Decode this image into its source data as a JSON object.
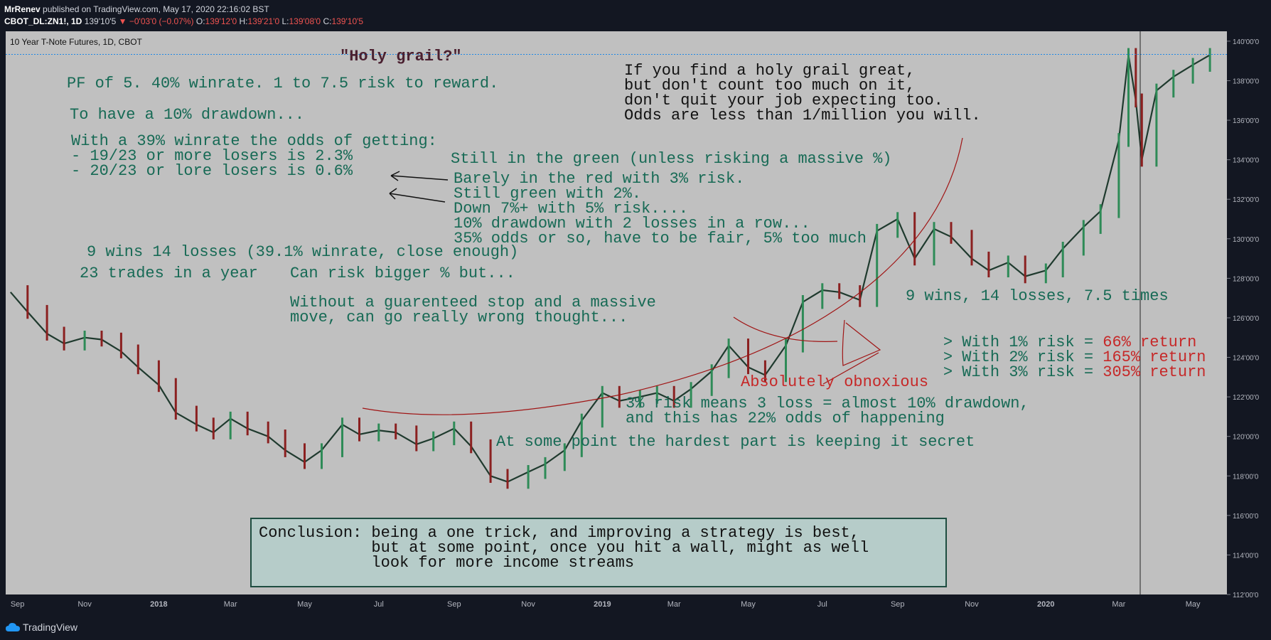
{
  "header": {
    "publisher": "MrRenev",
    "published_text": "published on TradingView.com, May 17, 2020 22:16:02 BST",
    "symbol_line": "CBOT_DL:ZN1!, 1D",
    "last_price": "139'10'5",
    "change_text": "▼ −0'03'0 (−0.07%)",
    "o_label": "O:",
    "o_value": "139'12'0",
    "h_label": "H:",
    "h_value": "139'21'0",
    "l_label": "L:",
    "l_value": "139'08'0",
    "c_label": "C:",
    "c_value": "139'10'5"
  },
  "chart_title": "10 Year T-Note Futures, 1D, CBOT",
  "footer": {
    "brand": "TradingView"
  },
  "colors": {
    "bg": "#c0c0c0",
    "candle_up": "#2e8b57",
    "candle_down": "#8b2020",
    "annotation_green": "#176a55",
    "annotation_red": "#c62828",
    "price_line": "#1e88e5"
  },
  "chart_data": {
    "type": "line",
    "ylim": [
      112,
      140.5
    ],
    "x_ticks": [
      "Sep",
      "Nov",
      "2018",
      "Mar",
      "May",
      "Jul",
      "Sep",
      "Nov",
      "2019",
      "Mar",
      "May",
      "Jul",
      "Sep",
      "Nov",
      "2020",
      "Mar",
      "May"
    ],
    "y_ticks": [
      "140'00'0",
      "138'00'0",
      "136'00'0",
      "134'00'0",
      "132'00'0",
      "130'00'0",
      "128'00'0",
      "126'00'0",
      "124'00'0",
      "122'00'0",
      "120'00'0",
      "118'00'0",
      "116'00'0",
      "114'00'0",
      "112'00'0"
    ],
    "current_price": 139.33,
    "series": [
      {
        "x": [
          "2017-09-01",
          "2017-09-15",
          "2017-10-01",
          "2017-10-15",
          "2017-11-01",
          "2017-11-15",
          "2017-12-01",
          "2017-12-15",
          "2018-01-01",
          "2018-01-15",
          "2018-02-01",
          "2018-02-15",
          "2018-03-01",
          "2018-03-15",
          "2018-04-01",
          "2018-04-15",
          "2018-05-01",
          "2018-05-15",
          "2018-06-01",
          "2018-06-15",
          "2018-07-01",
          "2018-07-15",
          "2018-08-01",
          "2018-08-15",
          "2018-09-01",
          "2018-09-15",
          "2018-10-01",
          "2018-10-15",
          "2018-11-01",
          "2018-11-15",
          "2018-12-01",
          "2018-12-15",
          "2019-01-01",
          "2019-01-15",
          "2019-02-01",
          "2019-02-15",
          "2019-03-01",
          "2019-03-15",
          "2019-04-01",
          "2019-04-15",
          "2019-05-01",
          "2019-05-15",
          "2019-06-01",
          "2019-06-15",
          "2019-07-01",
          "2019-07-15",
          "2019-08-01",
          "2019-08-15",
          "2019-09-01",
          "2019-09-15",
          "2019-10-01",
          "2019-10-15",
          "2019-11-01",
          "2019-11-15",
          "2019-12-01",
          "2019-12-15",
          "2020-01-01",
          "2020-01-15",
          "2020-02-01",
          "2020-02-15",
          "2020-03-01",
          "2020-03-09",
          "2020-03-15",
          "2020-03-20",
          "2020-04-01",
          "2020-04-15",
          "2020-05-01",
          "2020-05-15"
        ],
        "y": [
          127.3,
          126.3,
          125.2,
          124.7,
          125.0,
          124.9,
          124.3,
          123.5,
          122.6,
          121.2,
          120.6,
          120.2,
          120.9,
          120.4,
          120.0,
          119.3,
          118.7,
          119.3,
          120.6,
          120.1,
          120.3,
          120.2,
          119.6,
          119.9,
          120.4,
          119.5,
          118.0,
          117.7,
          118.2,
          118.6,
          119.3,
          120.8,
          122.2,
          121.8,
          122.0,
          122.2,
          121.8,
          122.4,
          123.3,
          124.6,
          123.5,
          123.1,
          124.6,
          126.8,
          127.4,
          127.3,
          126.9,
          130.4,
          131.0,
          129.0,
          130.5,
          130.1,
          129.0,
          128.4,
          128.8,
          128.1,
          128.4,
          129.5,
          130.6,
          131.4,
          135.0,
          139.3,
          137.0,
          134.0,
          137.5,
          138.2,
          138.8,
          139.3
        ]
      }
    ],
    "annotations": {
      "title": "\"Holy grail?\"",
      "pf_line": "PF of 5. 40% winrate. 1 to 7.5 risk to reward.",
      "drawdown_line": "To have a 10% drawdown...",
      "odds_lines": [
        "With a 39% winrate the odds of getting:",
        "- 19/23 or more losers is 2.3%",
        "- 20/23 or lore losers is 0.6%"
      ],
      "still_green": "Still in the green (unless risking a massive %)",
      "barely_red_lines": [
        "Barely in the red with 3% risk.",
        "Still green with 2%.",
        "Down 7%+ with 5% risk....",
        "10% drawdown with 2 losses in a row...",
        "35% odds or so, have to be fair, 5% too much"
      ],
      "holy_grail_lines": [
        "If you find a holy grail great,",
        "but don't count too much on it,",
        "don't quit your job expecting too.",
        "Odds are less than 1/million you will."
      ],
      "wins_losses": "9 wins 14 losses (39.1% winrate, close enough)",
      "trades_per_year": "23 trades in a year",
      "can_risk": "Can risk bigger % but...",
      "without_stop_lines": [
        "Without a guarenteed stop and a massive",
        "move, can go really wrong thought..."
      ],
      "results_header": "9 wins, 14 losses, 7.5 times",
      "results": [
        {
          "label": "> With 1% risk = ",
          "value": "66% return"
        },
        {
          "label": "> With 2% risk = ",
          "value": "165% return"
        },
        {
          "label": "> With 3% risk = ",
          "value": "305% return"
        }
      ],
      "obnoxious": "Absolutely obnoxious",
      "three_pct_lines": [
        "3% risk means 3 loss = almost 10% drawdown,",
        "and this has 22% odds of happening"
      ],
      "secret": "At some point the hardest part is keeping it secret",
      "conclusion_lines": [
        "Conclusion: being a one trick, and improving a strategy is best,",
        "            but at some point, once you hit a wall, might as well",
        "            look for more income streams"
      ]
    }
  }
}
